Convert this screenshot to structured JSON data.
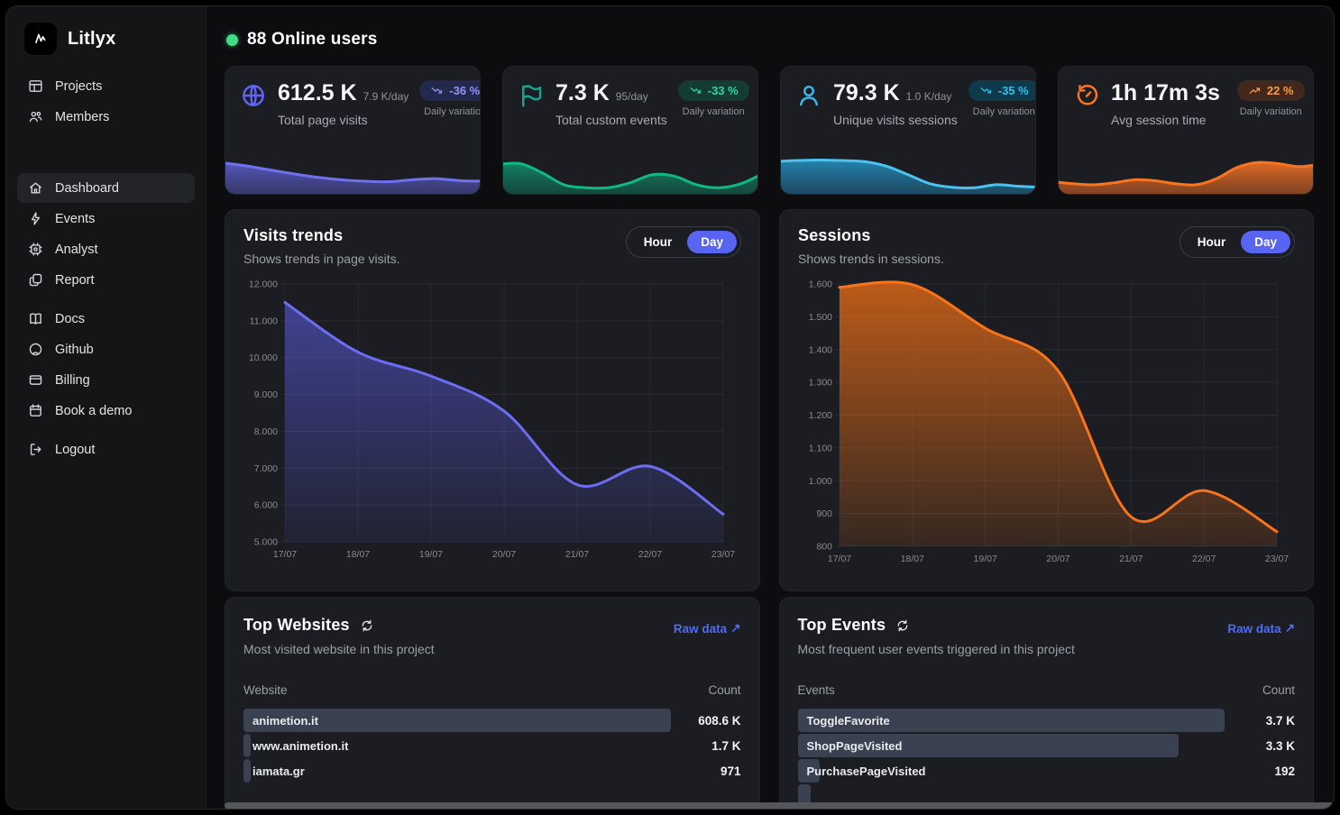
{
  "brand": {
    "name": "Litlyx",
    "logo_icon": "litlyx-logo-icon"
  },
  "sidebar": {
    "top_items": [
      {
        "label": "Projects",
        "icon": "projects-icon"
      },
      {
        "label": "Members",
        "icon": "members-icon"
      }
    ],
    "menu_items": [
      {
        "label": "Dashboard",
        "icon": "dashboard-icon",
        "active": true
      },
      {
        "label": "Events",
        "icon": "events-icon"
      },
      {
        "label": "Analyst",
        "icon": "analyst-icon"
      },
      {
        "label": "Report",
        "icon": "report-icon"
      }
    ],
    "resource_items": [
      {
        "label": "Docs",
        "icon": "docs-icon"
      },
      {
        "label": "Github",
        "icon": "github-icon"
      },
      {
        "label": "Billing",
        "icon": "billing-icon"
      },
      {
        "label": "Book a demo",
        "icon": "book-demo-icon"
      }
    ],
    "footer_items": [
      {
        "label": "Logout",
        "icon": "logout-icon"
      }
    ]
  },
  "header": {
    "online_users": "88 Online users",
    "online_dot_color": "#3ddc84"
  },
  "stat_cards": [
    {
      "icon": "globe-icon",
      "icon_color": "#5d66f3",
      "value": "612.5 K",
      "rate": "7.9 K/day",
      "label": "Total page visits",
      "badge": {
        "icon": "trend-down-icon",
        "text": "-36 %",
        "color": "#9094f2",
        "bg": "#23284e"
      },
      "caption": "Daily variation",
      "sparkline": {
        "stroke": "#6e72ee",
        "fill_from": "rgba(99,102,230,0.8)",
        "fill_to": "rgba(78,78,160,0.45)",
        "values": [
          62,
          56,
          48,
          40,
          33,
          28,
          25,
          24,
          28,
          30,
          26,
          25
        ]
      }
    },
    {
      "icon": "flag-icon",
      "icon_color": "#14a38b",
      "value": "7.3 K",
      "rate": "95/day",
      "label": "Total custom events",
      "badge": {
        "icon": "trend-down-icon",
        "text": "-33 %",
        "color": "#34d39e",
        "bg": "#143c33"
      },
      "caption": "Daily variation",
      "sparkline": {
        "stroke": "#10b981",
        "fill_from": "rgba(16,150,115,0.85)",
        "fill_to": "rgba(16,100,80,0.45)",
        "values": [
          58,
          60,
          42,
          18,
          12,
          12,
          22,
          38,
          35,
          18,
          12,
          20,
          40
        ]
      }
    },
    {
      "icon": "sessions-user-icon",
      "icon_color": "#38b7e8",
      "value": "79.3 K",
      "rate": "1.0 K/day",
      "label": "Unique visits sessions",
      "badge": {
        "icon": "trend-down-icon",
        "text": "-35 %",
        "color": "#38bde8",
        "bg": "#0f3a4c"
      },
      "caption": "Daily variation",
      "sparkline": {
        "stroke": "#4cc3ef",
        "fill_from": "rgba(38,150,200,0.85)",
        "fill_to": "rgba(30,110,150,0.45)",
        "values": [
          64,
          66,
          67,
          66,
          64,
          55,
          38,
          20,
          13,
          12,
          18,
          15,
          13
        ]
      }
    },
    {
      "icon": "timer-icon",
      "icon_color": "#f9741f",
      "value": "1h 17m 3s",
      "rate": "",
      "label": "Avg session time",
      "badge": {
        "icon": "trend-up-icon",
        "text": "22 %",
        "color": "#f59e4b",
        "bg": "#42281c"
      },
      "caption": "Daily variation",
      "sparkline": {
        "stroke": "#f9741f",
        "fill_from": "rgba(234,110,35,0.95)",
        "fill_to": "rgba(180,85,35,0.55)",
        "values": [
          24,
          20,
          18,
          22,
          28,
          26,
          20,
          18,
          30,
          52,
          62,
          60,
          54,
          58
        ]
      }
    }
  ],
  "charts": [
    {
      "title": "Visits trends",
      "subtitle": "Shows trends in page visits.",
      "toggle": {
        "hour": "Hour",
        "day": "Day",
        "selected": "Day"
      }
    },
    {
      "title": "Sessions",
      "subtitle": "Shows trends in sessions.",
      "toggle": {
        "hour": "Hour",
        "day": "Day",
        "selected": "Day"
      }
    }
  ],
  "chart_data": [
    {
      "type": "area",
      "title": "Visits trends",
      "x_labels": [
        "17/07",
        "18/07",
        "19/07",
        "20/07",
        "21/07",
        "22/07",
        "23/07"
      ],
      "values": [
        11500,
        10150,
        9500,
        8550,
        6550,
        7050,
        5750
      ],
      "ylim": [
        5000,
        12000
      ],
      "yticks": [
        {
          "v": 12000,
          "label": "12.000"
        },
        {
          "v": 11000,
          "label": "11.000"
        },
        {
          "v": 10000,
          "label": "10.000"
        },
        {
          "v": 9000,
          "label": "9.000"
        },
        {
          "v": 8000,
          "label": "8.000"
        },
        {
          "v": 7000,
          "label": "7.000"
        },
        {
          "v": 6000,
          "label": "6.000"
        },
        {
          "v": 5000,
          "label": "5.000"
        }
      ],
      "grid": true,
      "legend": false,
      "line_color": "#6b6ef2",
      "fill_from": "rgba(95,97,238,0.55)",
      "fill_to": "rgba(95,97,238,0.08)"
    },
    {
      "type": "area",
      "title": "Sessions",
      "x_labels": [
        "17/07",
        "18/07",
        "19/07",
        "20/07",
        "21/07",
        "22/07",
        "23/07"
      ],
      "values": [
        1590,
        1598,
        1465,
        1335,
        890,
        970,
        845
      ],
      "ylim": [
        800,
        1600
      ],
      "yticks": [
        {
          "v": 1600,
          "label": "1.600"
        },
        {
          "v": 1500,
          "label": "1.500"
        },
        {
          "v": 1400,
          "label": "1.400"
        },
        {
          "v": 1300,
          "label": "1.300"
        },
        {
          "v": 1200,
          "label": "1.200"
        },
        {
          "v": 1100,
          "label": "1.100"
        },
        {
          "v": 1000,
          "label": "1.000"
        },
        {
          "v": 900,
          "label": "900"
        },
        {
          "v": 800,
          "label": "800"
        }
      ],
      "grid": true,
      "legend": false,
      "line_color": "#f8741c",
      "fill_from": "rgba(249,115,22,0.72)",
      "fill_to": "rgba(249,115,22,0.12)"
    }
  ],
  "tables": [
    {
      "title": "Top Websites",
      "link": "Raw data",
      "link_arrow": "↗",
      "subtitle": "Most visited website in this project",
      "col_left": "Website",
      "col_right": "Count",
      "rows": [
        {
          "label": "animetion.it",
          "count": "608.6 K",
          "value": 608600
        },
        {
          "label": "www.animetion.it",
          "count": "1.7 K",
          "value": 1700
        },
        {
          "label": "iamata.gr",
          "count": "971",
          "value": 971
        }
      ]
    },
    {
      "title": "Top Events",
      "link": "Raw data",
      "link_arrow": "↗",
      "subtitle": "Most frequent user events triggered in this project",
      "col_left": "Events",
      "col_right": "Count",
      "rows": [
        {
          "label": "ToggleFavorite",
          "count": "3.7 K",
          "value": 3700
        },
        {
          "label": "ShopPageVisited",
          "count": "3.3 K",
          "value": 3300
        },
        {
          "label": "PurchasePageVisited",
          "count": "192",
          "value": 192
        },
        {
          "label": "",
          "count": "",
          "value": 110,
          "partial": true
        }
      ]
    }
  ]
}
